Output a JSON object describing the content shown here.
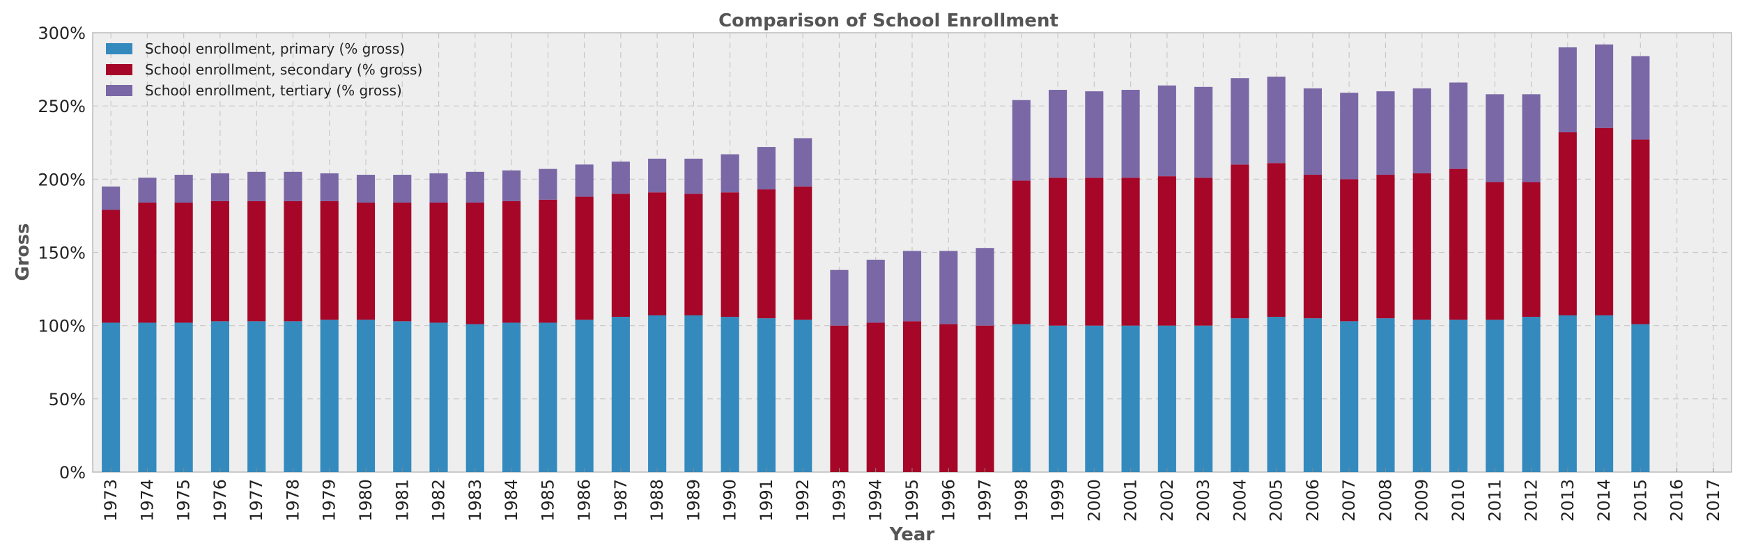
{
  "chart_data": {
    "type": "bar",
    "stacked": true,
    "title": "Comparison of School Enrollment",
    "xlabel": "Year",
    "ylabel": "Gross",
    "ylim": [
      0,
      300
    ],
    "y_tick_format": "percent",
    "grid": true,
    "legend_position": "top-left",
    "categories": [
      "1973",
      "1974",
      "1975",
      "1976",
      "1977",
      "1978",
      "1979",
      "1980",
      "1981",
      "1982",
      "1983",
      "1984",
      "1985",
      "1986",
      "1987",
      "1988",
      "1989",
      "1990",
      "1991",
      "1992",
      "1993",
      "1994",
      "1995",
      "1996",
      "1997",
      "1998",
      "1999",
      "2000",
      "2001",
      "2002",
      "2003",
      "2004",
      "2005",
      "2006",
      "2007",
      "2008",
      "2009",
      "2010",
      "2011",
      "2012",
      "2013",
      "2014",
      "2015",
      "2016",
      "2017"
    ],
    "series": [
      {
        "name": "School enrollment, primary (% gross)",
        "color": "#348ABD",
        "values": [
          102,
          102,
          102,
          103,
          103,
          103,
          104,
          104,
          103,
          102,
          101,
          102,
          102,
          104,
          106,
          107,
          107,
          106,
          105,
          104,
          null,
          null,
          null,
          null,
          null,
          101,
          100,
          100,
          100,
          100,
          100,
          105,
          106,
          105,
          103,
          105,
          104,
          104,
          104,
          106,
          107,
          107,
          101,
          null,
          null
        ]
      },
      {
        "name": "School enrollment, secondary (% gross)",
        "color": "#A60628",
        "values": [
          77,
          82,
          82,
          82,
          82,
          82,
          81,
          80,
          81,
          82,
          83,
          83,
          84,
          84,
          84,
          84,
          83,
          85,
          88,
          91,
          100,
          102,
          103,
          101,
          100,
          98,
          101,
          101,
          101,
          102,
          101,
          105,
          105,
          98,
          97,
          98,
          100,
          103,
          94,
          92,
          125,
          128,
          126,
          null,
          null
        ]
      },
      {
        "name": "School enrollment, tertiary (% gross)",
        "color": "#7A68A6",
        "values": [
          16,
          17,
          19,
          19,
          20,
          20,
          19,
          19,
          19,
          20,
          21,
          21,
          21,
          22,
          22,
          23,
          24,
          26,
          29,
          33,
          38,
          43,
          48,
          50,
          53,
          55,
          60,
          59,
          60,
          62,
          62,
          59,
          59,
          59,
          59,
          57,
          58,
          59,
          60,
          60,
          58,
          57,
          57,
          null,
          null
        ]
      }
    ]
  }
}
